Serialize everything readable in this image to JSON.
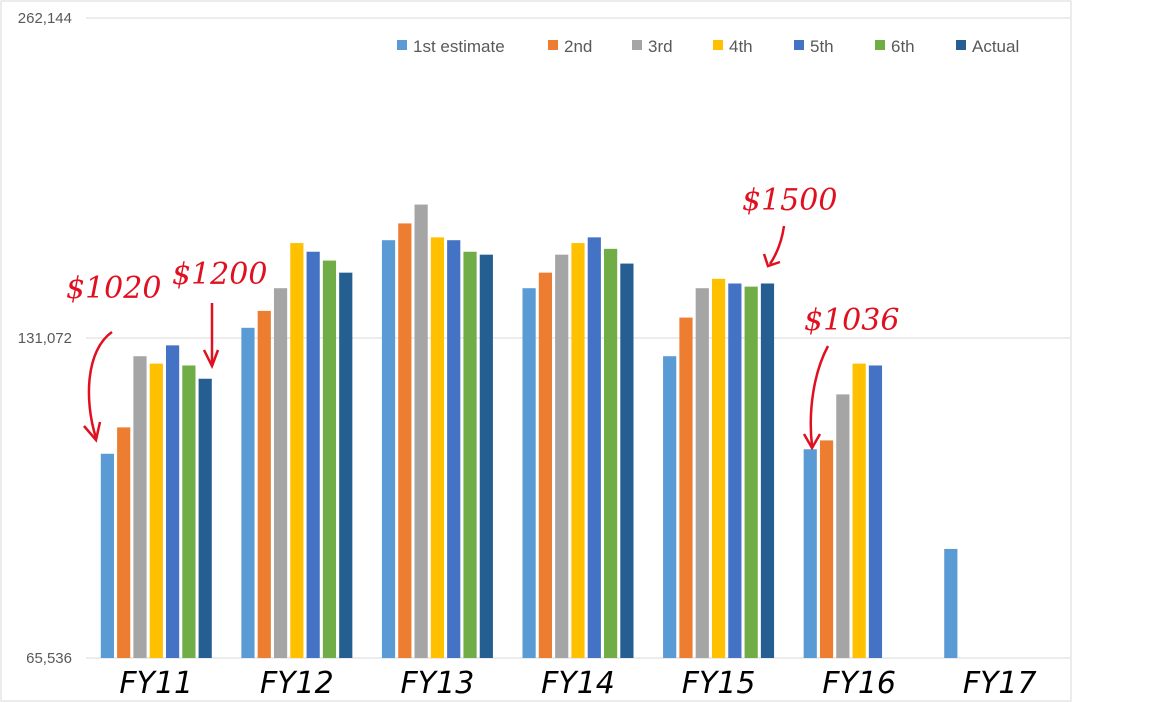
{
  "chart_data": {
    "type": "bar",
    "yscale": "log2",
    "ylim": [
      65536,
      262144
    ],
    "yticks": [
      "65,536",
      "131,072",
      "262,144"
    ],
    "ytick_values": [
      65536,
      131072,
      262144
    ],
    "categories": [
      "FY11",
      "FY12",
      "FY13",
      "FY14",
      "FY15",
      "FY16",
      "FY17"
    ],
    "series": [
      {
        "name": "1st estimate",
        "color": "#5B9BD5",
        "values": [
          102000,
          134000,
          162000,
          146000,
          126000,
          103000,
          83000
        ]
      },
      {
        "name": "2nd",
        "color": "#ED7D31",
        "values": [
          108000,
          139000,
          168000,
          151000,
          137000,
          105000,
          null
        ]
      },
      {
        "name": "3rd",
        "color": "#A5A5A5",
        "values": [
          126000,
          146000,
          175000,
          157000,
          146000,
          116000,
          null
        ]
      },
      {
        "name": "4th",
        "color": "#FFC000",
        "values": [
          124000,
          161000,
          163000,
          161000,
          149000,
          124000,
          null
        ]
      },
      {
        "name": "5th",
        "color": "#4472C4",
        "values": [
          129000,
          158000,
          162000,
          163000,
          147500,
          123500,
          null
        ]
      },
      {
        "name": "6th",
        "color": "#70AD47",
        "values": [
          123500,
          155000,
          158000,
          159000,
          146500,
          null,
          null
        ]
      },
      {
        "name": "Actual",
        "color": "#255E91",
        "values": [
          120000,
          151000,
          157000,
          154000,
          147500,
          null,
          null
        ]
      }
    ],
    "legend_position": "top-right",
    "grid": true,
    "annotations": [
      "$1020",
      "$1200",
      "$1500",
      "$1036"
    ]
  }
}
